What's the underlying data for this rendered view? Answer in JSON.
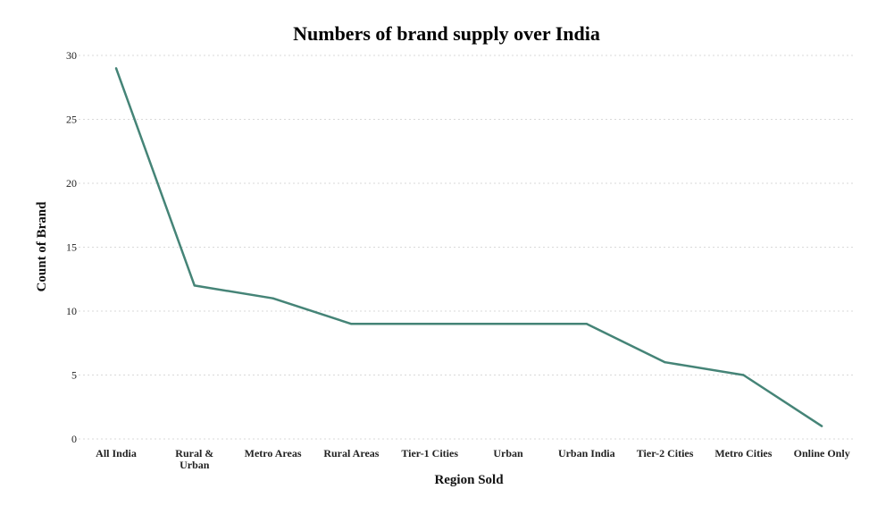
{
  "chart_data": {
    "type": "line",
    "title": "Numbers of brand supply over India",
    "xlabel": "Region Sold",
    "ylabel": "Count of Brand",
    "categories": [
      [
        "All India"
      ],
      [
        "Rural &",
        "Urban"
      ],
      [
        "Metro Areas"
      ],
      [
        "Rural Areas"
      ],
      [
        "Tier-1 Cities"
      ],
      [
        "Urban"
      ],
      [
        "Urban India"
      ],
      [
        "Tier-2 Cities"
      ],
      [
        "Metro Cities"
      ],
      [
        "Online Only"
      ]
    ],
    "values": [
      29,
      12,
      11,
      9,
      9,
      9,
      9,
      6,
      5,
      1
    ],
    "ylim": [
      0,
      30
    ],
    "yticks": [
      0,
      5,
      10,
      15,
      20,
      25,
      30
    ],
    "grid": true,
    "line_color": "#458477"
  }
}
